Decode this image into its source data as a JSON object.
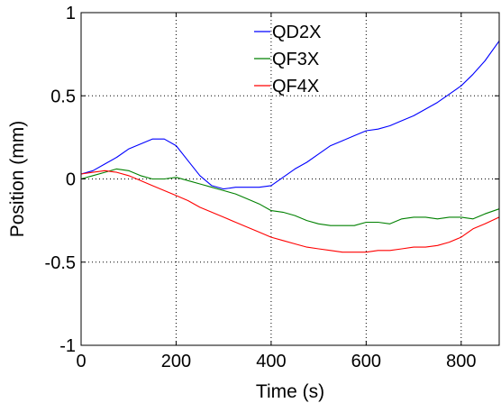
{
  "chart_data": {
    "type": "line",
    "title": "",
    "xlabel": "Time (s)",
    "ylabel": "Position (mm)",
    "xlim": [
      0,
      880
    ],
    "ylim": [
      -1,
      1
    ],
    "xticks": [
      0,
      200,
      400,
      600,
      800
    ],
    "xtick_labels": [
      "0",
      "200",
      "400",
      "600",
      "800"
    ],
    "yticks": [
      -1,
      -0.5,
      0,
      0.5,
      1
    ],
    "ytick_labels": [
      "-1",
      "-0.5",
      "0",
      "0.5",
      "1"
    ],
    "grid": true,
    "grid_style": "dotted",
    "legend_position": "top-center",
    "series": [
      {
        "name": "QD2X",
        "color": "#0000ff",
        "x": [
          0,
          25,
          50,
          75,
          100,
          125,
          150,
          175,
          200,
          225,
          250,
          275,
          300,
          325,
          350,
          375,
          400,
          425,
          450,
          475,
          500,
          525,
          550,
          575,
          600,
          625,
          650,
          675,
          700,
          725,
          750,
          775,
          800,
          825,
          850,
          880
        ],
        "y": [
          0.03,
          0.05,
          0.09,
          0.13,
          0.18,
          0.21,
          0.24,
          0.24,
          0.2,
          0.11,
          0.02,
          -0.04,
          -0.06,
          -0.05,
          -0.05,
          -0.05,
          -0.04,
          0.01,
          0.06,
          0.1,
          0.15,
          0.2,
          0.23,
          0.26,
          0.29,
          0.3,
          0.32,
          0.35,
          0.38,
          0.42,
          0.46,
          0.51,
          0.56,
          0.63,
          0.71,
          0.83
        ]
      },
      {
        "name": "QF3X",
        "color": "#008000",
        "x": [
          0,
          25,
          50,
          75,
          100,
          125,
          150,
          175,
          200,
          225,
          250,
          275,
          300,
          325,
          350,
          375,
          400,
          425,
          450,
          475,
          500,
          525,
          550,
          575,
          600,
          625,
          650,
          675,
          700,
          725,
          750,
          775,
          800,
          825,
          850,
          880
        ],
        "y": [
          0.0,
          0.02,
          0.04,
          0.06,
          0.05,
          0.02,
          0.0,
          0.0,
          0.01,
          -0.01,
          -0.03,
          -0.05,
          -0.07,
          -0.09,
          -0.12,
          -0.15,
          -0.19,
          -0.2,
          -0.22,
          -0.25,
          -0.27,
          -0.28,
          -0.28,
          -0.28,
          -0.26,
          -0.26,
          -0.27,
          -0.24,
          -0.23,
          -0.23,
          -0.24,
          -0.23,
          -0.23,
          -0.24,
          -0.21,
          -0.18
        ]
      },
      {
        "name": "QF4X",
        "color": "#ff0000",
        "x": [
          0,
          25,
          50,
          75,
          100,
          125,
          150,
          175,
          200,
          225,
          250,
          275,
          300,
          325,
          350,
          375,
          400,
          425,
          450,
          475,
          500,
          525,
          550,
          575,
          600,
          625,
          650,
          675,
          700,
          725,
          750,
          775,
          800,
          825,
          850,
          880
        ],
        "y": [
          0.03,
          0.04,
          0.05,
          0.04,
          0.02,
          -0.01,
          -0.04,
          -0.07,
          -0.1,
          -0.13,
          -0.17,
          -0.2,
          -0.23,
          -0.26,
          -0.29,
          -0.32,
          -0.35,
          -0.37,
          -0.39,
          -0.41,
          -0.42,
          -0.43,
          -0.44,
          -0.44,
          -0.44,
          -0.43,
          -0.43,
          -0.42,
          -0.41,
          -0.41,
          -0.4,
          -0.38,
          -0.35,
          -0.3,
          -0.27,
          -0.23
        ]
      }
    ]
  }
}
